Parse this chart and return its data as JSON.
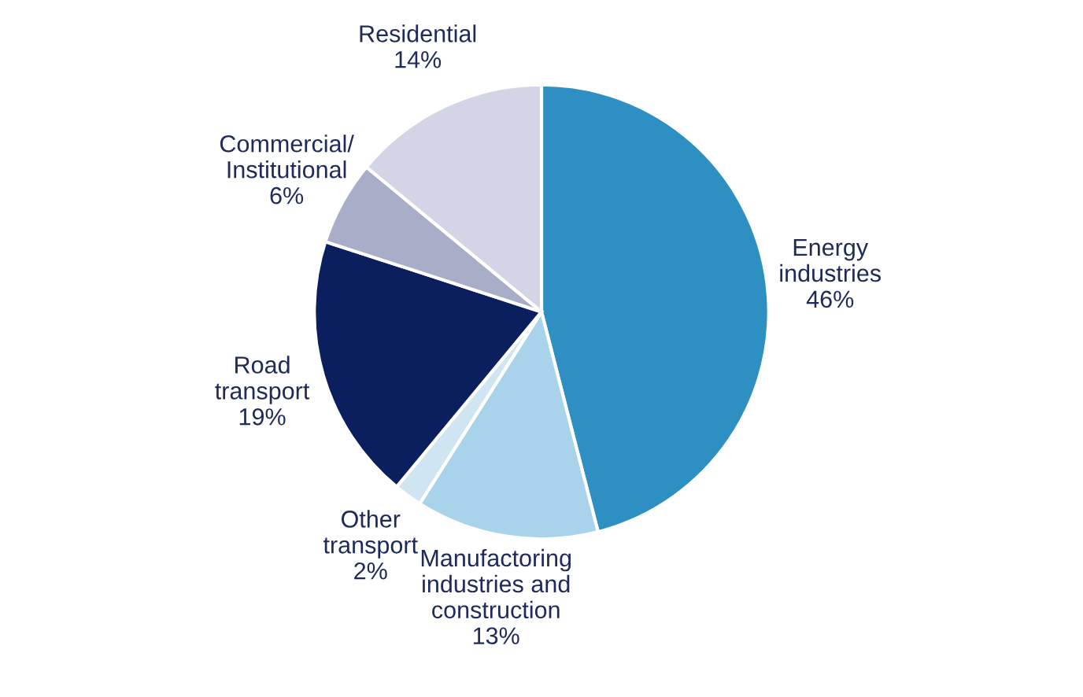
{
  "chart_data": {
    "type": "pie",
    "categories": [
      "Energy\nindustries",
      "Manufactoring\nindustries and\nconstruction",
      "Other\ntransport",
      "Road\ntransport",
      "Commercial/\nInstitutional",
      "Residential"
    ],
    "values": [
      46,
      13,
      2,
      19,
      6,
      14
    ],
    "colors": [
      "#2e8fc2",
      "#a8d3ea",
      "#d0e5f2",
      "#0b1f5e",
      "#a9aec8",
      "#d3d5e6"
    ],
    "value_labels": [
      "46%",
      "13%",
      "2%",
      "19%",
      "6%",
      "14%"
    ]
  }
}
